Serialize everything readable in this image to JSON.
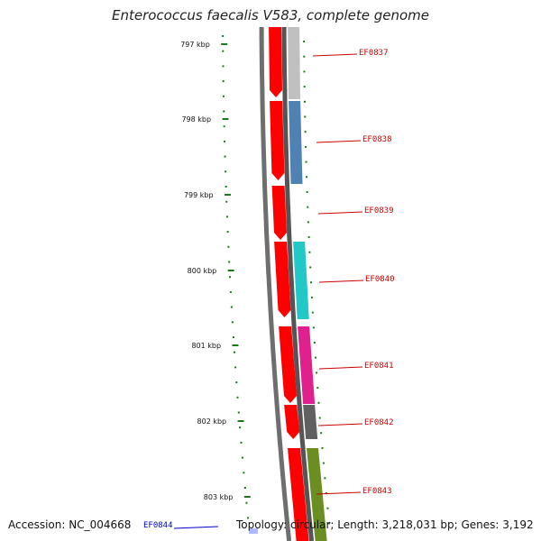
{
  "title": "Enterococcus faecalis V583, complete genome",
  "footer": {
    "accession": "Accession: NC_004668",
    "summary": "Topology: circular; Length: 3,218,031 bp; Genes: 3,192"
  },
  "ticks": [
    "797 kbp",
    "798 kbp",
    "799 kbp",
    "800 kbp",
    "801 kbp",
    "802 kbp",
    "803 kbp"
  ],
  "genes": [
    {
      "name": "EF0837",
      "color": "#c0c0c0",
      "label_color": "#cc0000"
    },
    {
      "name": "EF0838",
      "color": "#4f81b3",
      "label_color": "#cc0000"
    },
    {
      "name": "EF0839",
      "color": null,
      "label_color": "#cc0000"
    },
    {
      "name": "EF0840",
      "color": "#22c7c7",
      "label_color": "#cc0000"
    },
    {
      "name": "EF0841",
      "color": "#e0208c",
      "label_color": "#cc0000"
    },
    {
      "name": "EF0842",
      "color": "#606060",
      "label_color": "#cc0000"
    },
    {
      "name": "EF0843",
      "color": "#6b8e23",
      "label_color": "#cc0000"
    },
    {
      "name": "EF0844",
      "color": "#b0b8ff",
      "label_color": "#0000cc"
    }
  ],
  "colors": {
    "backbone": "#6e6e6e",
    "cds": "#ff0000",
    "tick": "#1a7a1a"
  }
}
